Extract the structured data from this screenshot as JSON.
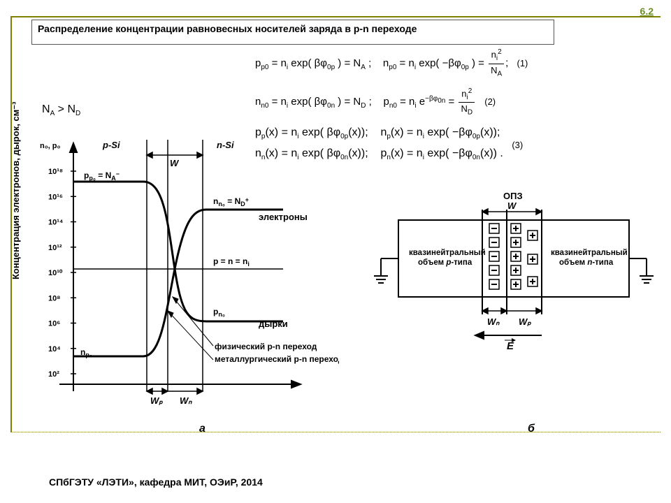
{
  "page_number": "6.2",
  "title": "Распределение концентрации равновесных носителей заряда в p‑n переходе",
  "footer": "СПбГЭТУ «ЛЭТИ», кафедра МИТ, ОЭиР, 2014",
  "condition_html": "N<sub>A</sub> > N<sub>D</sub>",
  "equations": {
    "eq1_a": "p<sub>p0</sub> = n<sub>i</sub> exp( βφ<sub>0p</sub> ) = N<sub>A</sub> ;",
    "eq1_b": "n<sub>p0</sub> = n<sub>i</sub> exp( −βφ<sub>0p</sub> ) =",
    "eq1_frac_num": "n<sub>i</sub><sup>2</sup>",
    "eq1_frac_den": "N<sub>A</sub>",
    "eq1_num": "(1)",
    "eq2_a": "n<sub>n0</sub> = n<sub>i</sub> exp( βφ<sub>0n</sub> ) = N<sub>D</sub> ;",
    "eq2_b": "p<sub>n0</sub> = n<sub>i</sub> e<sup>−βφ<sub>0n</sub></sup> =",
    "eq2_frac_num": "n<sub>i</sub><sup>2</sup>",
    "eq2_frac_den": "N<sub>D</sub>",
    "eq2_num": "(2)",
    "eq3_a": "p<sub>p</sub>(x) = n<sub>i</sub> exp( βφ<sub>0p</sub>(x));",
    "eq3_b": "n<sub>p</sub>(x) = n<sub>i</sub> exp( −βφ<sub>0p</sub>(x));",
    "eq3_c": "n<sub>n</sub>(x) = n<sub>i</sub> exp( βφ<sub>0n</sub>(x));",
    "eq3_d": "p<sub>n</sub>(x) = n<sub>i</sub> exp( −βφ<sub>0n</sub>(x)) .",
    "eq3_num": "(3)"
  },
  "chart": {
    "y_label": "Концентрация электронов, дырок, см⁻³",
    "y_header": "n₀, p₀",
    "region_p": "p-Si",
    "region_n": "n-Si",
    "opz": "ОПЗ",
    "W": "W",
    "Wp": "Wₚ",
    "Wn": "Wₙ",
    "ticks": [
      "10¹⁸",
      "10¹⁶",
      "10¹⁴",
      "10¹²",
      "10¹⁰",
      "10⁸",
      "10⁶",
      "10⁴",
      "10²"
    ],
    "label_pp0": "pₚ₀ = N_A⁻",
    "label_nn0": "nₙ₀ = N_D⁺",
    "label_electrons": "электроны",
    "label_holes": "дырки",
    "label_pn0": "pₙ₀",
    "label_np0": "nₚ₀",
    "label_ni": "p = n = nᵢ",
    "label_phys": "физический p-n переход",
    "label_metal": "металлургический p-n переход",
    "sub_a": "а",
    "sub_b": "б",
    "colors": {
      "axis": "#000000",
      "curve": "#000000",
      "bg": "#ffffff"
    },
    "xlim": [
      0,
      320
    ],
    "ylim": [
      0,
      320
    ]
  },
  "schematic": {
    "opz": "ОПЗ",
    "W": "W",
    "Wp": "Wₚ",
    "Wn": "Wₙ",
    "E": "E",
    "p_region": "квазинейтральный объем p-типа",
    "n_region": "квазинейтральный объем n-типа",
    "colors": {
      "border": "#000000",
      "charge_border": "#000000"
    }
  }
}
